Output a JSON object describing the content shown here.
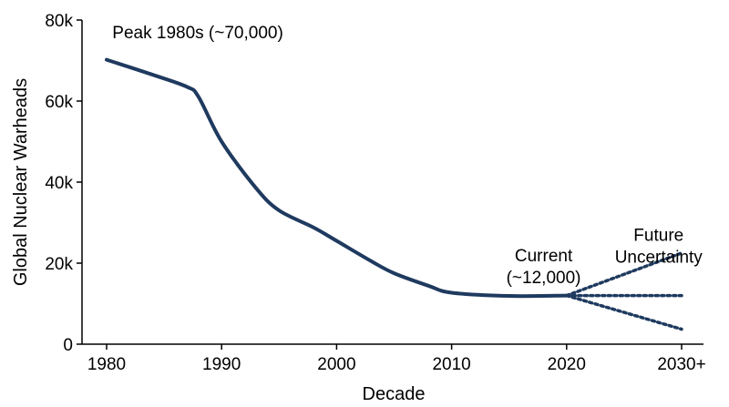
{
  "chart_data": {
    "type": "line",
    "title": "",
    "xlabel": "Decade",
    "ylabel": "Global Nuclear Warheads",
    "xlim": [
      1980,
      2030
    ],
    "ylim": [
      0,
      80000
    ],
    "x_ticks": [
      1980,
      1990,
      2000,
      2010,
      2020,
      2030
    ],
    "x_tick_labels": [
      "1980",
      "1990",
      "2000",
      "2010",
      "2020",
      "2030+"
    ],
    "y_ticks": [
      0,
      20000,
      40000,
      60000,
      80000
    ],
    "y_tick_labels": [
      "0",
      "20k",
      "40k",
      "60k",
      "80k"
    ],
    "grid": false,
    "line_color": "#1f3a5f",
    "series": [
      {
        "style": "solid",
        "x": [
          1980,
          1984,
          1987,
          1988,
          1990,
          1993,
          1995,
          1998,
          2000,
          2003,
          2005,
          2008,
          2010,
          2015,
          2020
        ],
        "y": [
          70200,
          66500,
          63500,
          61000,
          50000,
          38500,
          33000,
          28800,
          25500,
          20500,
          17500,
          14400,
          12700,
          11900,
          12000
        ]
      },
      {
        "style": "dotted",
        "x": [
          2020,
          2030
        ],
        "y": [
          12000,
          22500
        ]
      },
      {
        "style": "dotted",
        "x": [
          2020,
          2030
        ],
        "y": [
          12000,
          12000
        ]
      },
      {
        "style": "dotted",
        "x": [
          2020,
          2030
        ],
        "y": [
          12000,
          3700
        ]
      }
    ],
    "annotations": [
      {
        "id": "peak",
        "lines": [
          "Peak 1980s (~70,000)"
        ],
        "x": 1980.5,
        "y": 75500,
        "anchor": "start"
      },
      {
        "id": "current",
        "lines": [
          "Current",
          "(~12,000)"
        ],
        "x": 2018,
        "y": 20500,
        "anchor": "middle"
      },
      {
        "id": "future",
        "lines": [
          "Future",
          "Uncertainty"
        ],
        "x": 2028,
        "y": 25500,
        "anchor": "middle"
      }
    ]
  }
}
